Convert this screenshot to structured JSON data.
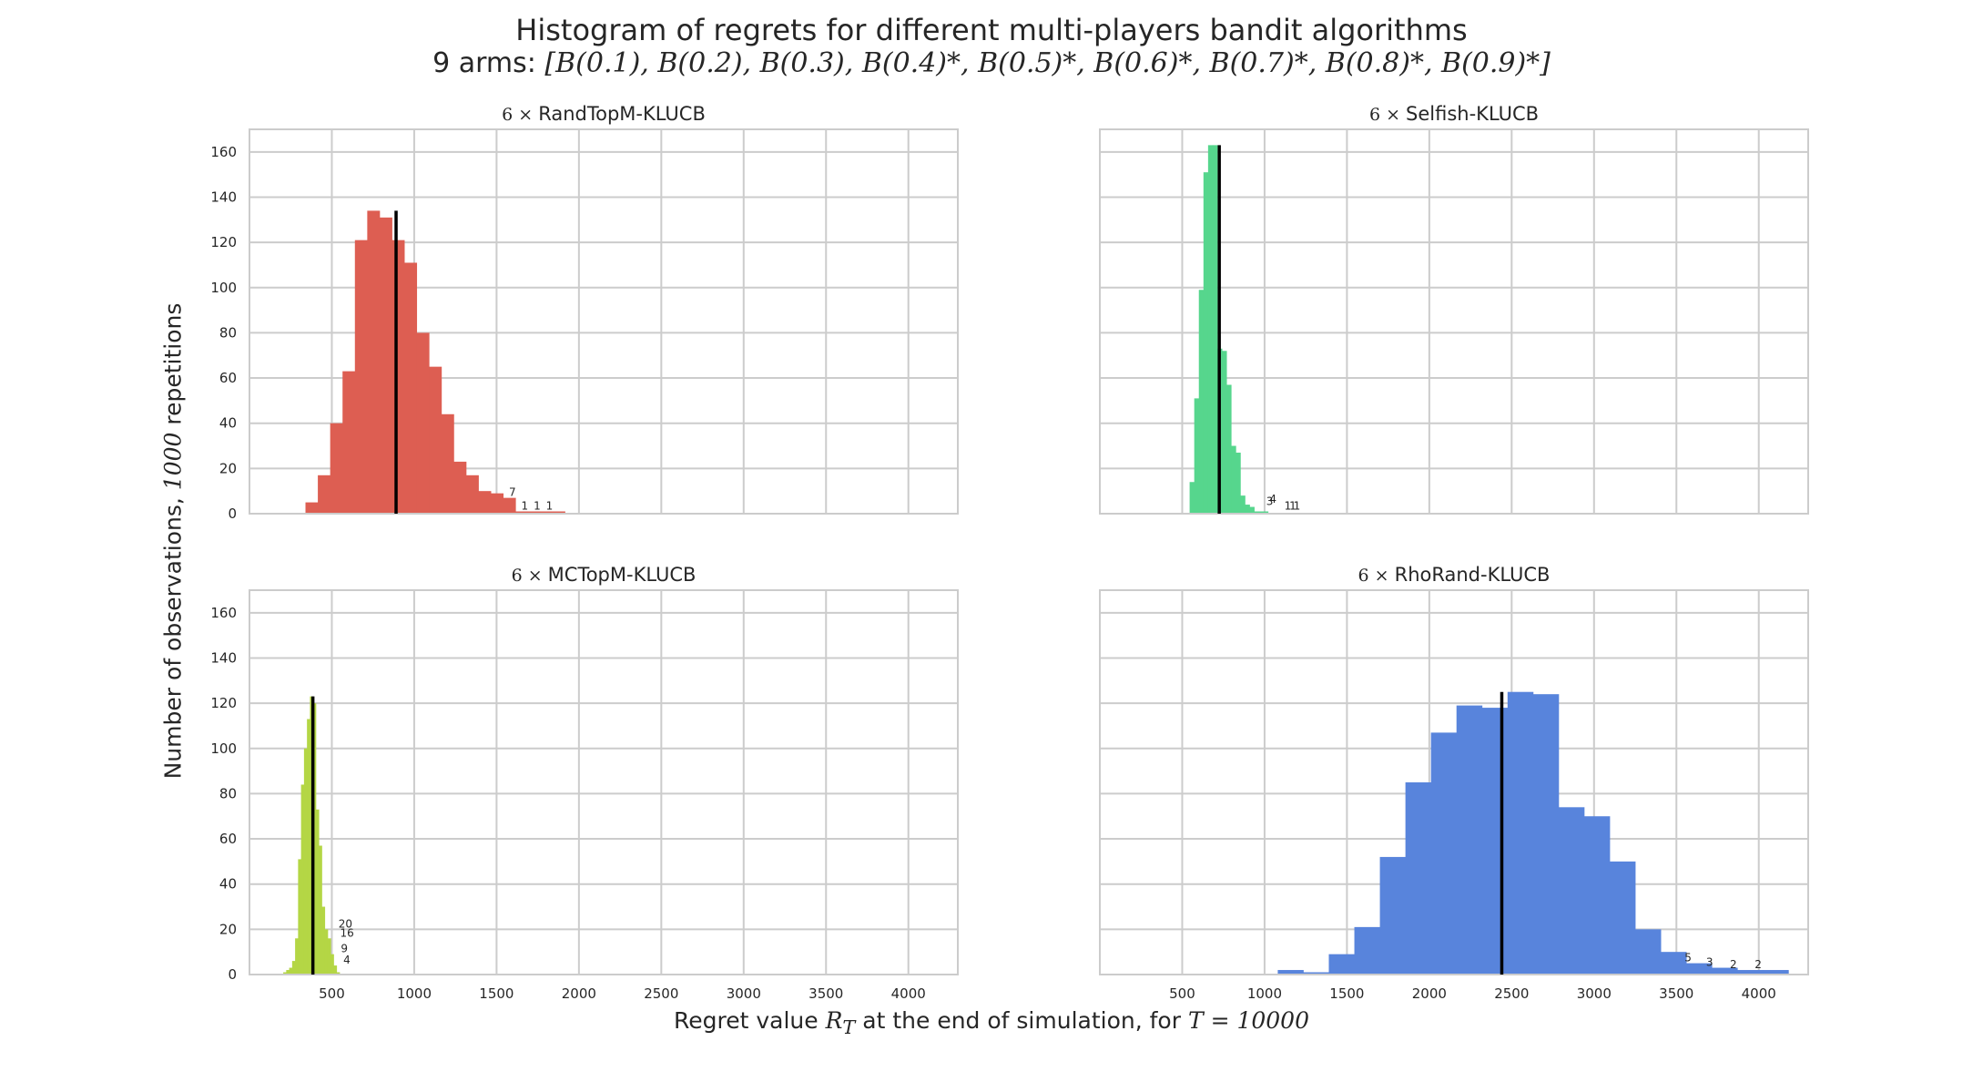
{
  "figure": {
    "title": "Histogram of regrets for different multi-players bandit algorithms",
    "subtitle_prefix": "9 arms: ",
    "subtitle_math": "[B(0.1), B(0.2), B(0.3), B(0.4)*, B(0.5)*, B(0.6)*, B(0.7)*, B(0.8)*, B(0.9)*]",
    "ylabel_prefix": "Number of observations, ",
    "ylabel_math": "1000",
    "ylabel_suffix": " repetitions",
    "xlabel_prefix": "Regret value ",
    "xlabel_math1": "R",
    "xlabel_sub": "T",
    "xlabel_middle": " at the end of simulation, for ",
    "xlabel_math2": "T = 10000"
  },
  "chart_data": [
    {
      "type": "bar",
      "title_prefix": "6 ×",
      "title": "RandTopM-KLUCB",
      "color": "#dd5e52",
      "xlim": [
        0,
        4300
      ],
      "ylim": [
        0,
        170
      ],
      "xticks": [
        500,
        1000,
        1500,
        2000,
        2500,
        3000,
        3500,
        4000
      ],
      "yticks": [
        0,
        20,
        40,
        60,
        80,
        100,
        120,
        140,
        160
      ],
      "show_yticks": true,
      "show_xticks": false,
      "bin_width": 75,
      "bin_start": 340,
      "values": [
        5,
        17,
        40,
        63,
        121,
        134,
        131,
        121,
        111,
        80,
        65,
        44,
        23,
        17,
        10,
        9,
        7,
        1,
        1,
        1,
        1,
        0
      ],
      "mean": 890,
      "annotations": [
        {
          "x": 1575,
          "y": 7,
          "text": "7"
        },
        {
          "x": 1650,
          "y": 1,
          "text": "1"
        },
        {
          "x": 1725,
          "y": 1,
          "text": "1"
        },
        {
          "x": 1800,
          "y": 1,
          "text": "1"
        }
      ]
    },
    {
      "type": "bar",
      "title_prefix": "6 ×",
      "title": "Selfish-KLUCB",
      "color": "#56d68d",
      "xlim": [
        0,
        4300
      ],
      "ylim": [
        0,
        170
      ],
      "xticks": [
        500,
        1000,
        1500,
        2000,
        2500,
        3000,
        3500,
        4000
      ],
      "yticks": [
        0,
        20,
        40,
        60,
        80,
        100,
        120,
        140,
        160
      ],
      "show_yticks": false,
      "show_xticks": false,
      "bin_width": 28,
      "bin_start": 545,
      "values": [
        14,
        51,
        99,
        151,
        163,
        163,
        73,
        72,
        57,
        30,
        27,
        8,
        4,
        3,
        1,
        1,
        1
      ],
      "mean": 725,
      "annotations": [
        {
          "x": 1030,
          "y": 4,
          "text": "4"
        },
        {
          "x": 1010,
          "y": 3,
          "text": "3"
        },
        {
          "x": 1120,
          "y": 1,
          "text": "1"
        },
        {
          "x": 1150,
          "y": 1,
          "text": "1"
        },
        {
          "x": 1175,
          "y": 1,
          "text": "1"
        }
      ]
    },
    {
      "type": "bar",
      "title_prefix": "6 ×",
      "title": "MCTopM-KLUCB",
      "color": "#b4d645",
      "xlim": [
        0,
        4300
      ],
      "ylim": [
        0,
        170
      ],
      "xticks": [
        500,
        1000,
        1500,
        2000,
        2500,
        3000,
        3500,
        4000
      ],
      "yticks": [
        0,
        20,
        40,
        60,
        80,
        100,
        120,
        140,
        160
      ],
      "show_yticks": true,
      "show_xticks": true,
      "bin_width": 18,
      "bin_start": 205,
      "values": [
        1,
        2,
        3,
        6,
        16,
        51,
        84,
        100,
        113,
        123,
        120,
        73,
        57,
        30,
        20,
        16,
        9,
        4,
        1
      ],
      "mean": 385,
      "annotations": [
        {
          "x": 540,
          "y": 20,
          "text": "20"
        },
        {
          "x": 550,
          "y": 16,
          "text": "16"
        },
        {
          "x": 555,
          "y": 9,
          "text": "9"
        },
        {
          "x": 570,
          "y": 4,
          "text": "4"
        }
      ]
    },
    {
      "type": "bar",
      "title_prefix": "6 ×",
      "title": "RhoRand-KLUCB",
      "color": "#5884dc",
      "xlim": [
        0,
        4300
      ],
      "ylim": [
        0,
        170
      ],
      "xticks": [
        500,
        1000,
        1500,
        2000,
        2500,
        3000,
        3500,
        4000
      ],
      "yticks": [
        0,
        20,
        40,
        60,
        80,
        100,
        120,
        140,
        160
      ],
      "show_yticks": false,
      "show_xticks": true,
      "bin_width": 155,
      "bin_start": 1080,
      "values": [
        2,
        1,
        9,
        21,
        52,
        85,
        107,
        119,
        118,
        125,
        124,
        74,
        70,
        50,
        20,
        10,
        5,
        3,
        2,
        2
      ],
      "mean": 2440,
      "annotations": [
        {
          "x": 3550,
          "y": 5,
          "text": "5"
        },
        {
          "x": 3680,
          "y": 3,
          "text": "3"
        },
        {
          "x": 3825,
          "y": 2,
          "text": "2"
        },
        {
          "x": 3975,
          "y": 2,
          "text": "2"
        }
      ]
    }
  ]
}
